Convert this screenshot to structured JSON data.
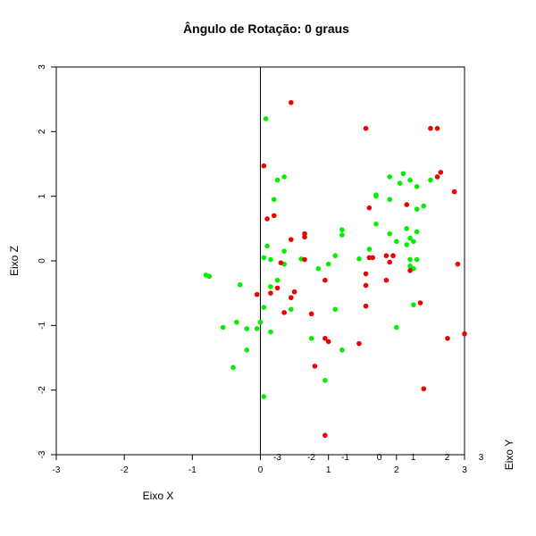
{
  "chart_data": {
    "type": "scatter",
    "title": "Ângulo de Rotação: 0 graus",
    "xlabel": "Eixo X",
    "ylabel": "Eixo Z",
    "y2label": "Eixo Y",
    "xlim": [
      -3,
      3
    ],
    "ylim": [
      -3,
      3
    ],
    "xticks": [
      "-3",
      "-2",
      "-1",
      "0",
      "1",
      "2",
      "3"
    ],
    "yticks": [
      "-3",
      "-2",
      "-1",
      "0",
      "1",
      "2",
      "3"
    ],
    "y_axis_ticks": [
      "-3",
      "-2",
      "-1",
      "0",
      "1",
      "2",
      "3"
    ],
    "y_axis_tick_values": [
      -3,
      -2,
      -1,
      0,
      1,
      2,
      3
    ],
    "grid": false,
    "series": [
      {
        "color": "#00ee00",
        "points": [
          [
            0.08,
            2.2
          ],
          [
            0.35,
            1.3
          ],
          [
            0.25,
            1.25
          ],
          [
            0.2,
            0.95
          ],
          [
            1.9,
            0.42
          ],
          [
            0.15,
            0.02
          ],
          [
            0.05,
            0.05
          ],
          [
            1.0,
            -0.05
          ],
          [
            1.1,
            -0.75
          ],
          [
            0.45,
            -0.75
          ],
          [
            0.35,
            -0.05
          ],
          [
            0.25,
            -0.3
          ],
          [
            0.75,
            -1.2
          ],
          [
            -0.2,
            -1.05
          ],
          [
            -0.05,
            -1.05
          ],
          [
            0.15,
            -1.1
          ],
          [
            0.05,
            -2.1
          ],
          [
            -0.4,
            -1.65
          ],
          [
            0.95,
            -1.85
          ],
          [
            -0.2,
            -1.38
          ],
          [
            -0.35,
            -0.95
          ],
          [
            -0.0,
            -0.95
          ],
          [
            0.05,
            -0.72
          ],
          [
            0.35,
            0.15
          ],
          [
            2.1,
            1.35
          ],
          [
            1.9,
            1.3
          ],
          [
            2.2,
            1.25
          ],
          [
            2.5,
            1.25
          ],
          [
            2.05,
            1.2
          ],
          [
            2.3,
            1.15
          ],
          [
            1.7,
            1.02
          ],
          [
            1.7,
            1.0
          ],
          [
            1.9,
            0.95
          ],
          [
            2.4,
            0.85
          ],
          [
            2.3,
            0.8
          ],
          [
            1.7,
            0.57
          ],
          [
            2.15,
            0.5
          ],
          [
            2.3,
            0.45
          ],
          [
            1.2,
            0.48
          ],
          [
            1.2,
            0.4
          ],
          [
            2.2,
            0.35
          ],
          [
            2.0,
            0.3
          ],
          [
            2.25,
            0.3
          ],
          [
            0.1,
            0.23
          ],
          [
            2.15,
            0.25
          ],
          [
            1.6,
            0.18
          ],
          [
            1.1,
            0.08
          ],
          [
            0.6,
            0.03
          ],
          [
            1.45,
            0.03
          ],
          [
            2.2,
            0.02
          ],
          [
            2.3,
            0.02
          ],
          [
            0.85,
            -0.12
          ],
          [
            2.2,
            -0.08
          ],
          [
            2.25,
            -0.12
          ],
          [
            -0.8,
            -0.22
          ],
          [
            -0.75,
            -0.24
          ],
          [
            -0.3,
            -0.37
          ],
          [
            0.15,
            -0.4
          ],
          [
            -0.55,
            -1.03
          ],
          [
            1.2,
            -1.38
          ],
          [
            2.0,
            -1.03
          ],
          [
            2.25,
            -0.68
          ]
        ]
      },
      {
        "color": "#ee0000",
        "points": [
          [
            0.45,
            2.45
          ],
          [
            1.55,
            2.05
          ],
          [
            2.5,
            2.05
          ],
          [
            2.6,
            2.05
          ],
          [
            2.85,
            1.07
          ],
          [
            0.05,
            1.47
          ],
          [
            1.6,
            0.82
          ],
          [
            0.2,
            0.7
          ],
          [
            0.1,
            0.65
          ],
          [
            0.65,
            0.42
          ],
          [
            0.65,
            0.37
          ],
          [
            0.45,
            0.33
          ],
          [
            0.65,
            0.02
          ],
          [
            0.3,
            -0.03
          ],
          [
            1.55,
            -0.2
          ],
          [
            1.85,
            -0.3
          ],
          [
            0.95,
            -0.3
          ],
          [
            1.55,
            -0.38
          ],
          [
            0.25,
            -0.42
          ],
          [
            0.5,
            -0.48
          ],
          [
            0.15,
            -0.5
          ],
          [
            0.45,
            -0.57
          ],
          [
            2.35,
            -0.65
          ],
          [
            1.55,
            -0.7
          ],
          [
            0.35,
            -0.8
          ],
          [
            0.75,
            -0.82
          ],
          [
            2.75,
            -1.2
          ],
          [
            1.45,
            -1.28
          ],
          [
            0.95,
            -1.2
          ],
          [
            1.0,
            -1.25
          ],
          [
            0.8,
            -1.63
          ],
          [
            2.4,
            -1.98
          ],
          [
            0.95,
            -2.7
          ],
          [
            1.6,
            0.05
          ],
          [
            1.95,
            0.08
          ],
          [
            -0.05,
            -0.52
          ],
          [
            2.65,
            1.37
          ],
          [
            2.6,
            1.3
          ],
          [
            2.15,
            0.87
          ],
          [
            2.2,
            -0.15
          ],
          [
            2.9,
            -0.05
          ],
          [
            3.0,
            -1.13
          ],
          [
            1.85,
            0.08
          ],
          [
            1.65,
            0.05
          ],
          [
            1.9,
            -0.02
          ]
        ]
      }
    ]
  }
}
